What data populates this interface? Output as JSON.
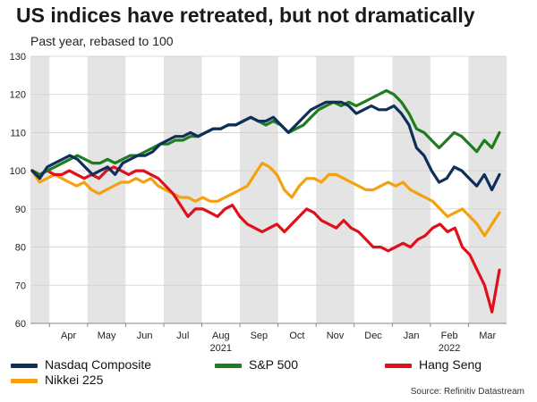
{
  "chart_data": {
    "type": "line",
    "title": "US indices have retreated, but not dramatically",
    "subtitle": "Past year, rebased to 100",
    "source": "Source: Refinitiv Datastream",
    "ylim": [
      60,
      130
    ],
    "yticks": [
      60,
      70,
      80,
      90,
      100,
      110,
      120,
      130
    ],
    "months": [
      "Apr",
      "May",
      "Jun",
      "Jul",
      "Aug",
      "Sep",
      "Oct",
      "Nov",
      "Dec",
      "Jan",
      "Feb",
      "Mar"
    ],
    "year_labels": [
      {
        "text": "2021",
        "month": "Aug"
      },
      {
        "text": "2022",
        "month": "Feb"
      }
    ],
    "grid": true,
    "legend_position": "bottom",
    "series": [
      {
        "name": "Nasdaq Composite",
        "color": "#0d2f5a",
        "values": [
          100,
          98,
          101,
          102,
          103,
          104,
          103,
          101,
          99,
          100,
          101,
          99,
          102,
          103,
          104,
          104,
          105,
          107,
          108,
          109,
          109,
          110,
          109,
          110,
          111,
          111,
          112,
          112,
          113,
          114,
          113,
          113,
          114,
          112,
          110,
          112,
          114,
          116,
          117,
          118,
          118,
          118,
          117,
          115,
          116,
          117,
          116,
          116,
          117,
          115,
          112,
          106,
          104,
          100,
          97,
          98,
          101,
          100,
          98,
          96,
          99,
          95,
          99
        ]
      },
      {
        "name": "S&P 500",
        "color": "#1e7d1e",
        "values": [
          100,
          99,
          100,
          101,
          102,
          103,
          104,
          103,
          102,
          102,
          103,
          102,
          103,
          104,
          104,
          105,
          106,
          107,
          107,
          108,
          108,
          109,
          109,
          110,
          111,
          111,
          112,
          112,
          113,
          114,
          113,
          112,
          113,
          112,
          110,
          111,
          112,
          114,
          116,
          117,
          118,
          117,
          118,
          117,
          118,
          119,
          120,
          121,
          120,
          118,
          115,
          111,
          110,
          108,
          106,
          108,
          110,
          109,
          107,
          105,
          108,
          106,
          110
        ]
      },
      {
        "name": "Hang Seng",
        "color": "#e0101a",
        "values": [
          100,
          99,
          100,
          99,
          99,
          100,
          99,
          98,
          99,
          98,
          100,
          101,
          100,
          99,
          100,
          100,
          99,
          98,
          96,
          94,
          91,
          88,
          90,
          90,
          89,
          88,
          90,
          91,
          88,
          86,
          85,
          84,
          85,
          86,
          84,
          86,
          88,
          90,
          89,
          87,
          86,
          85,
          87,
          85,
          84,
          82,
          80,
          80,
          79,
          80,
          81,
          80,
          82,
          83,
          85,
          86,
          84,
          85,
          80,
          78,
          74,
          70,
          63,
          74
        ]
      },
      {
        "name": "Nikkei 225",
        "color": "#f5a00f",
        "values": [
          100,
          97,
          98,
          99,
          98,
          97,
          96,
          97,
          95,
          94,
          95,
          96,
          97,
          97,
          98,
          97,
          98,
          96,
          95,
          94,
          93,
          93,
          92,
          93,
          92,
          92,
          93,
          94,
          95,
          96,
          99,
          102,
          101,
          99,
          95,
          93,
          96,
          98,
          98,
          97,
          99,
          99,
          98,
          97,
          96,
          95,
          95,
          96,
          97,
          96,
          97,
          95,
          94,
          93,
          92,
          90,
          88,
          89,
          90,
          88,
          86,
          83,
          86,
          89
        ]
      }
    ]
  },
  "legend": {
    "items": [
      {
        "name": "Nasdaq Composite",
        "color": "#0d2f5a"
      },
      {
        "name": "S&P 500",
        "color": "#1e7d1e"
      },
      {
        "name": "Hang Seng",
        "color": "#e0101a"
      },
      {
        "name": "Nikkei 225",
        "color": "#f5a00f"
      }
    ]
  }
}
